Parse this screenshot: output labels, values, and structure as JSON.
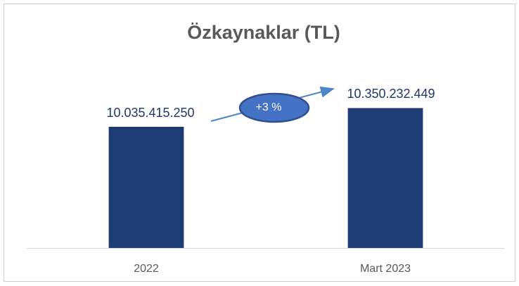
{
  "chart_data": {
    "type": "bar",
    "title": "Özkaynaklar (TL)",
    "categories": [
      "2022",
      "Mart 2023"
    ],
    "values": [
      10035415250,
      10350232449
    ],
    "value_labels": [
      "10.035.415.250",
      "10.350.232.449"
    ],
    "color": "#1f3b73",
    "ylim": [
      8000000000,
      12000000000
    ],
    "annotations": [
      {
        "text": "+3 %"
      }
    ]
  }
}
